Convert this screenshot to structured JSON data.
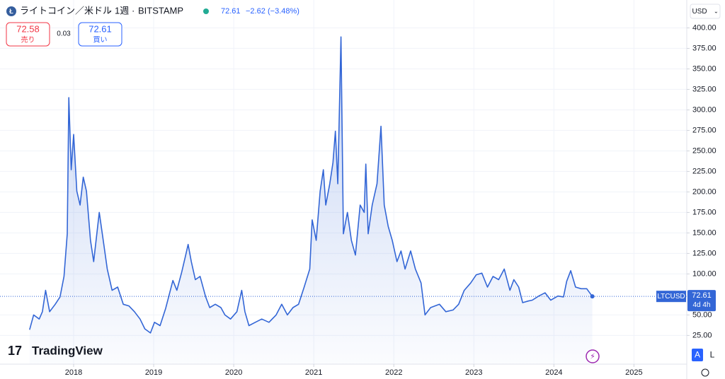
{
  "header": {
    "title": "ライトコイン／米ドル",
    "interval": "1週",
    "exchange": "BITSTAMP",
    "price": "72.61",
    "change": "−2.62",
    "change_pct": "(−3.48%)",
    "sell_price": "72.58",
    "sell_label": "売り",
    "spread": "0.03",
    "buy_price": "72.61",
    "buy_label": "買い",
    "currency": "USD",
    "logo": "TradingView",
    "auto_button": "A",
    "log_button": "L"
  },
  "chart_data": {
    "type": "area",
    "color": "#3366d6",
    "grid": true,
    "price_tag": {
      "symbol": "LTCUSD",
      "price": "72.61",
      "countdown": "4d 4h"
    },
    "x": [
      2017.45,
      2017.5,
      2017.57,
      2017.61,
      2017.65,
      2017.7,
      2017.77,
      2017.83,
      2017.88,
      2017.92,
      2017.94,
      2017.97,
      2018.0,
      2018.04,
      2018.08,
      2018.12,
      2018.16,
      2018.21,
      2018.25,
      2018.32,
      2018.37,
      2018.42,
      2018.48,
      2018.55,
      2018.62,
      2018.69,
      2018.76,
      2018.83,
      2018.89,
      2018.96,
      2019.01,
      2019.08,
      2019.15,
      2019.24,
      2019.29,
      2019.35,
      2019.4,
      2019.43,
      2019.47,
      2019.52,
      2019.58,
      2019.65,
      2019.7,
      2019.77,
      2019.84,
      2019.89,
      2019.96,
      2020.04,
      2020.1,
      2020.14,
      2020.19,
      2020.27,
      2020.35,
      2020.44,
      2020.53,
      2020.6,
      2020.67,
      2020.74,
      2020.81,
      2020.88,
      2020.95,
      2020.98,
      2021.03,
      2021.08,
      2021.12,
      2021.15,
      2021.2,
      2021.24,
      2021.27,
      2021.3,
      2021.34,
      2021.37,
      2021.42,
      2021.47,
      2021.52,
      2021.58,
      2021.63,
      2021.65,
      2021.68,
      2021.73,
      2021.79,
      2021.84,
      2021.88,
      2021.93,
      2021.98,
      2022.04,
      2022.09,
      2022.14,
      2022.21,
      2022.27,
      2022.34,
      2022.39,
      2022.46,
      2022.57,
      2022.65,
      2022.74,
      2022.81,
      2022.88,
      2022.96,
      2023.03,
      2023.1,
      2023.17,
      2023.24,
      2023.31,
      2023.38,
      2023.45,
      2023.5,
      2023.56,
      2023.61,
      2023.68,
      2023.73,
      2023.81,
      2023.89,
      2023.96,
      2024.05,
      2024.12,
      2024.16,
      2024.21,
      2024.27,
      2024.34,
      2024.41,
      2024.48
    ],
    "values": [
      32,
      50,
      45,
      54,
      80,
      54,
      63,
      72,
      97,
      149,
      315,
      227,
      270,
      201,
      184,
      218,
      201,
      141,
      115,
      175,
      141,
      106,
      80,
      84,
      63,
      61,
      54,
      45,
      33,
      28,
      41,
      37,
      58,
      92,
      80,
      102,
      123,
      136,
      115,
      93,
      97,
      72,
      59,
      63,
      59,
      50,
      45,
      54,
      80,
      54,
      37,
      41,
      45,
      41,
      50,
      63,
      50,
      59,
      63,
      84,
      106,
      166,
      141,
      201,
      227,
      184,
      210,
      236,
      274,
      210,
      389,
      149,
      175,
      141,
      123,
      184,
      175,
      234,
      149,
      184,
      210,
      280,
      184,
      158,
      141,
      115,
      128,
      106,
      128,
      106,
      89,
      50,
      59,
      63,
      54,
      56,
      63,
      80,
      89,
      99,
      101,
      84,
      97,
      93,
      106,
      80,
      93,
      84,
      65,
      67,
      68,
      73,
      77,
      68,
      73,
      72,
      91,
      104,
      84,
      82,
      82,
      72.61
    ],
    "xlim": [
      2017.08,
      2025.66
    ],
    "xticks": [
      2018,
      2019,
      2020,
      2021,
      2022,
      2023,
      2024,
      2025
    ],
    "ylim": [
      -10,
      434
    ],
    "yticks": [
      {
        "value": 25,
        "label": "25.00"
      },
      {
        "value": 50,
        "label": "50.00"
      },
      {
        "value": 100,
        "label": "100.00"
      },
      {
        "value": 125,
        "label": "125.00"
      },
      {
        "value": 150,
        "label": "150.00"
      },
      {
        "value": 175,
        "label": "175.00"
      },
      {
        "value": 200,
        "label": "200.00"
      },
      {
        "value": 225,
        "label": "225.00"
      },
      {
        "value": 250,
        "label": "250.00"
      },
      {
        "value": 275,
        "label": "275.00"
      },
      {
        "value": 300,
        "label": "300.00"
      },
      {
        "value": 325,
        "label": "325.00"
      },
      {
        "value": 350,
        "label": "350.00"
      },
      {
        "value": 375,
        "label": "375.00"
      },
      {
        "value": 400,
        "label": "400.00"
      }
    ]
  }
}
